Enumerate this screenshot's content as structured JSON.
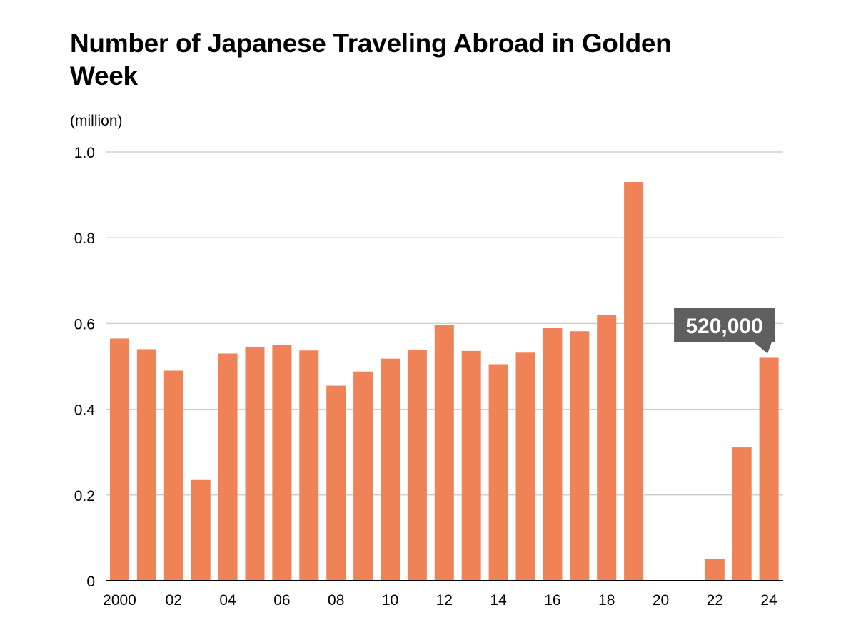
{
  "chart_data": {
    "type": "bar",
    "title": "Number of Japanese Traveling Abroad in Golden Week",
    "ylabel": "(million)",
    "xlabel": "",
    "ylim": [
      0,
      1.0
    ],
    "yticks": [
      {
        "value": 0,
        "label": "0"
      },
      {
        "value": 0.2,
        "label": "0.2"
      },
      {
        "value": 0.4,
        "label": "0.4"
      },
      {
        "value": 0.6,
        "label": "0.6"
      },
      {
        "value": 0.8,
        "label": "0.8"
      },
      {
        "value": 1.0,
        "label": "1.0"
      }
    ],
    "grid": true,
    "bar_color": "#F08258",
    "categories": [
      "2000",
      "2001",
      "2002",
      "2003",
      "2004",
      "2005",
      "2006",
      "2007",
      "2008",
      "2009",
      "2010",
      "2011",
      "2012",
      "2013",
      "2014",
      "2015",
      "2016",
      "2017",
      "2018",
      "2019",
      "2020",
      "2021",
      "2022",
      "2023",
      "2024"
    ],
    "tick_labels": [
      "2000",
      "",
      "02",
      "",
      "04",
      "",
      "06",
      "",
      "08",
      "",
      "10",
      "",
      "12",
      "",
      "14",
      "",
      "16",
      "",
      "18",
      "",
      "20",
      "",
      "22",
      "",
      "24"
    ],
    "values": [
      0.565,
      0.54,
      0.49,
      0.235,
      0.53,
      0.545,
      0.55,
      0.537,
      0.455,
      0.488,
      0.518,
      0.538,
      0.597,
      0.536,
      0.505,
      0.532,
      0.589,
      0.582,
      0.62,
      0.93,
      0,
      0,
      0.05,
      0.311,
      0.52
    ],
    "annotation": {
      "text": "520,000",
      "category": "2024",
      "box_color": "#5f5f5f",
      "text_color": "#ffffff"
    }
  }
}
